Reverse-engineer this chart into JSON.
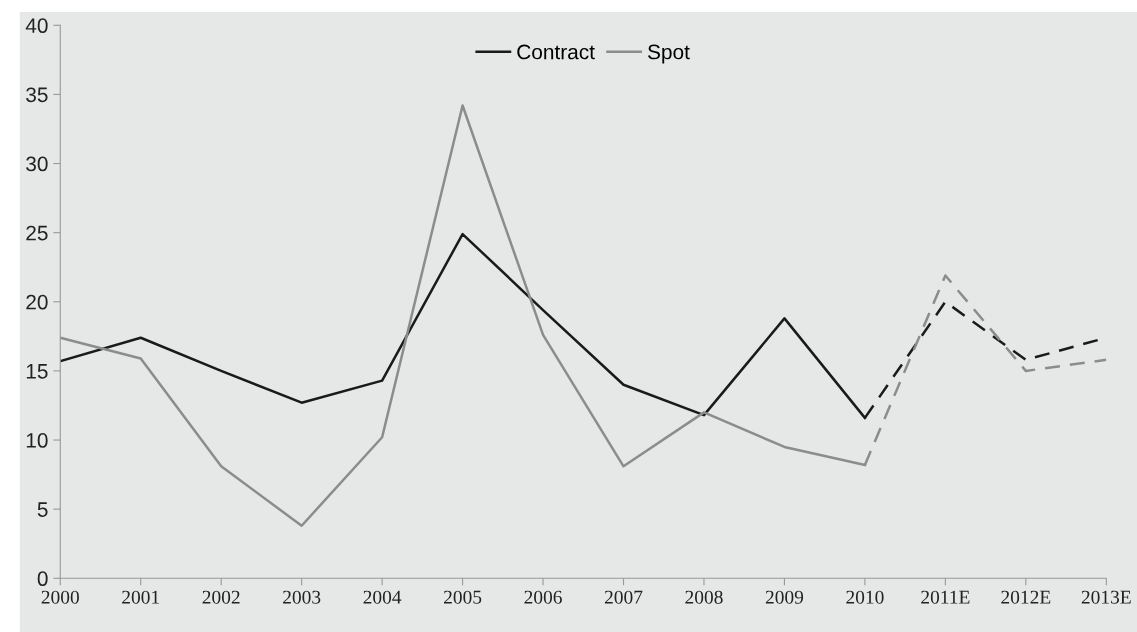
{
  "chart_data": {
    "type": "line",
    "categories": [
      "2000",
      "2001",
      "2002",
      "2003",
      "2004",
      "2005",
      "2006",
      "2007",
      "2008",
      "2009",
      "2010",
      "2011E",
      "2012E",
      "2013E"
    ],
    "series": [
      {
        "name": "Contract",
        "color": "#1a1a1a",
        "line_style": "solid",
        "values": [
          15.7,
          17.4,
          15.0,
          12.7,
          14.3,
          24.9,
          19.4,
          14.0,
          11.8,
          18.8,
          11.6,
          null,
          null,
          null
        ]
      },
      {
        "name": "Spot",
        "color": "#8c8c8c",
        "line_style": "solid",
        "values": [
          17.4,
          15.9,
          8.1,
          3.8,
          10.2,
          34.2,
          17.6,
          8.1,
          12.0,
          9.5,
          8.2,
          null,
          null,
          null
        ]
      },
      {
        "color": "#1a1a1a",
        "line_style": "dashed",
        "values": [
          null,
          null,
          null,
          null,
          null,
          null,
          null,
          null,
          null,
          null,
          11.6,
          20.0,
          15.8,
          17.4
        ]
      },
      {
        "color": "#8c8c8c",
        "line_style": "dashed",
        "values": [
          null,
          null,
          null,
          null,
          null,
          null,
          null,
          null,
          null,
          null,
          8.2,
          21.9,
          15.0,
          15.8
        ]
      }
    ],
    "ylim": [
      0,
      40
    ],
    "yticks": [
      0,
      5,
      10,
      15,
      20,
      25,
      30,
      35,
      40
    ],
    "grid": false,
    "legend": "top",
    "marker": "none"
  }
}
